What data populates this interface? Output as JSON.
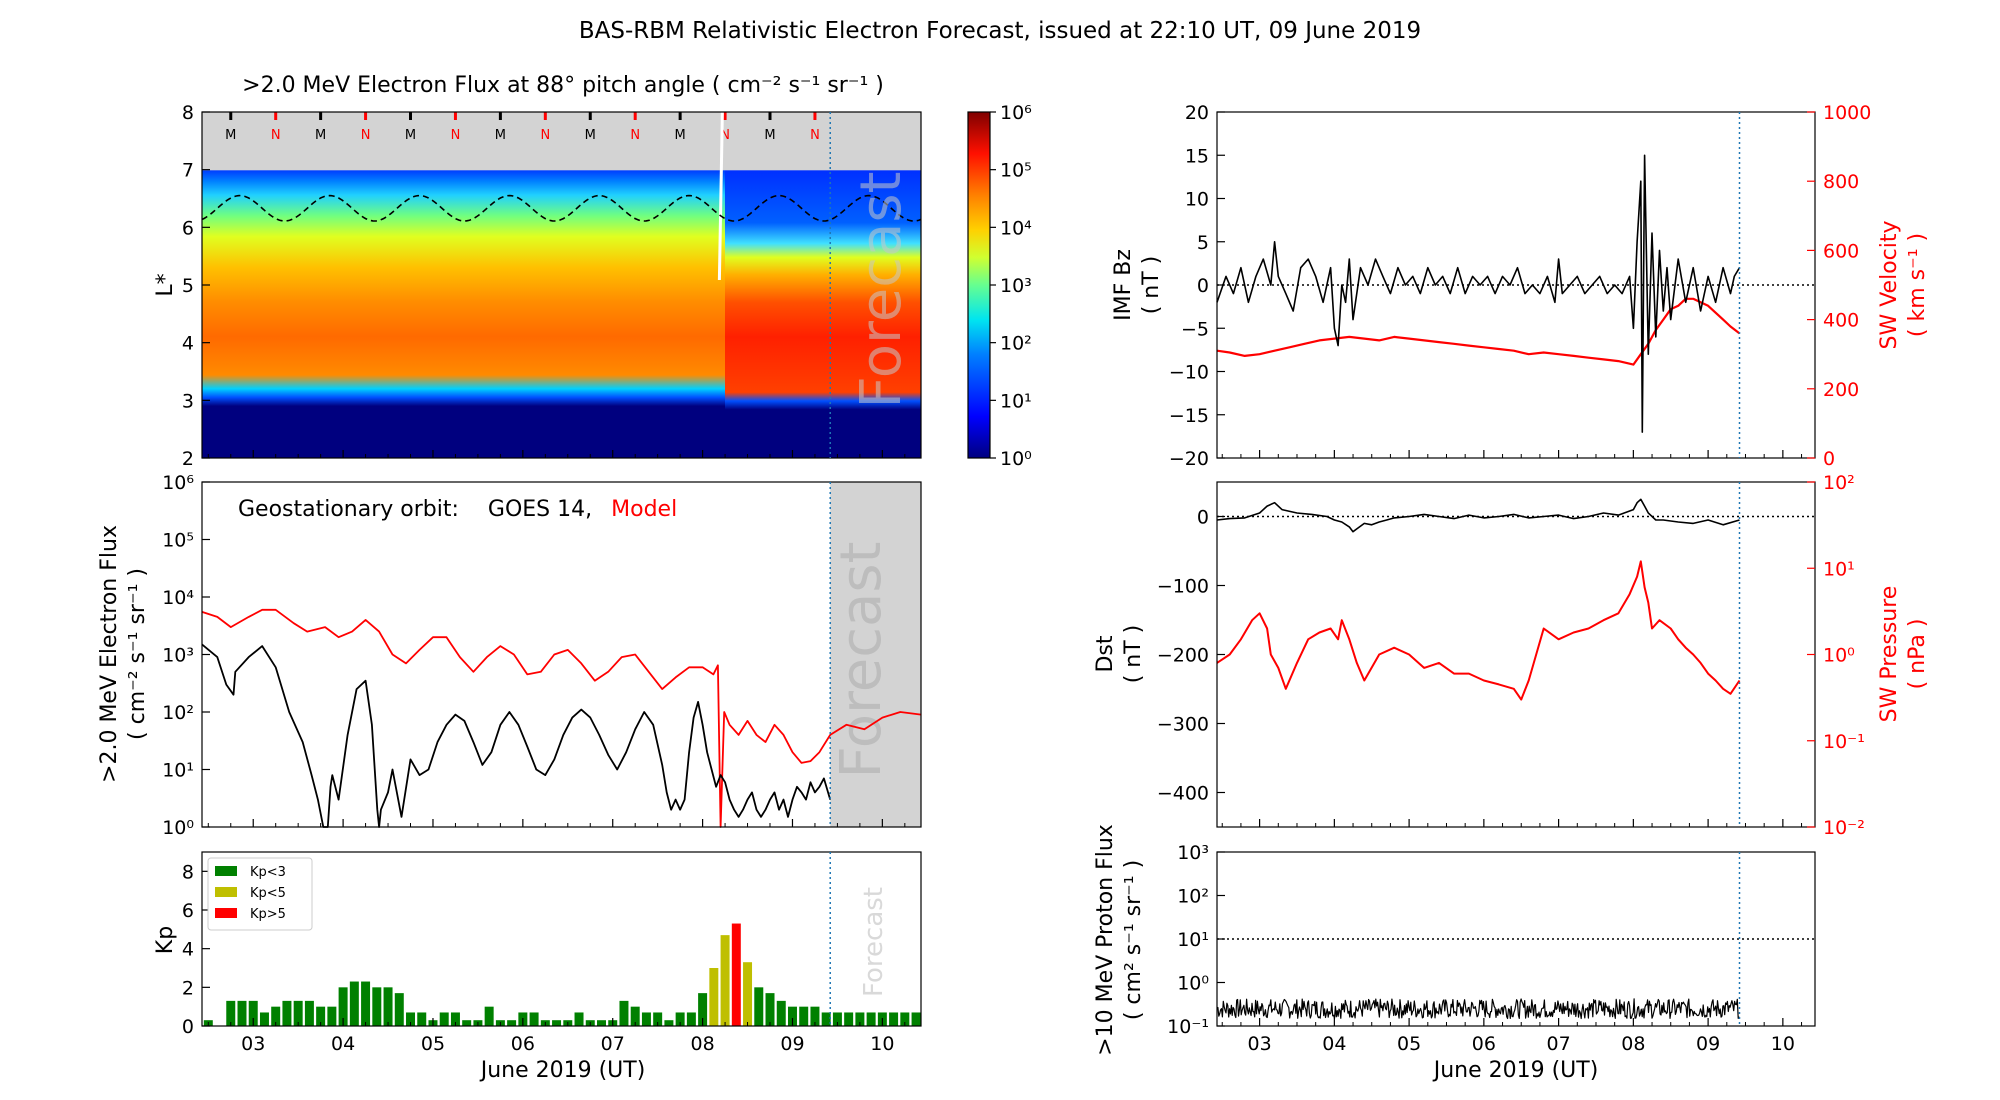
{
  "title": "BAS-RBM Relativistic Electron Forecast, issued at 22:10 UT, 09 June 2019",
  "colors": {
    "model": "#ff0000",
    "observed": "#000000",
    "kp_low": "#008000",
    "kp_mid": "#bfbf00",
    "kp_high": "#ff0000",
    "forecast_shade": "#d3d3d3",
    "vline": "#1f77b4"
  },
  "date_ticks": [
    "03",
    "04",
    "05",
    "06",
    "07",
    "08",
    "09",
    "10"
  ],
  "xlabel": "June 2019 (UT)",
  "chart_data": [
    {
      "id": "flux_map",
      "type": "heatmap",
      "title": ">2.0 MeV Electron Flux at 88° pitch angle ( cm⁻² s⁻¹ sr⁻¹ )",
      "ylabel": "L*",
      "ylim": [
        2,
        8
      ],
      "yticks": [
        "2",
        "3",
        "4",
        "5",
        "6",
        "7",
        "8"
      ],
      "xlim": [
        2.43,
        10.43
      ],
      "colorbar": {
        "scale": "log",
        "range": [
          1,
          1000000
        ],
        "ticks": [
          "10⁰",
          "10¹",
          "10²",
          "10³",
          "10⁴",
          "10⁵",
          "10⁶"
        ]
      },
      "mn_markers": [
        "M",
        "N",
        "M",
        "N",
        "M",
        "N",
        "M",
        "N",
        "M",
        "N",
        "M",
        "N",
        "M",
        "N"
      ],
      "overlay_text": "Forecast",
      "forecast_start": 9.42
    },
    {
      "id": "geo_flux",
      "type": "line",
      "annotation": {
        "prefix": "Geostationary orbit:",
        "observed": "GOES 14,",
        "model": "Model"
      },
      "ylabel": ">2.0 MeV Electron Flux",
      "yunits": "( cm⁻² s⁻¹ sr⁻¹ )",
      "yscale": "log",
      "ylim": [
        1,
        1000000
      ],
      "yticks": [
        "10⁰",
        "10¹",
        "10²",
        "10³",
        "10⁴",
        "10⁵",
        "10⁶"
      ],
      "xlim": [
        2.43,
        10.43
      ],
      "forecast_start": 9.42,
      "overlay_text": "Forecast",
      "series": [
        {
          "name": "GOES 14",
          "x": [
            2.43,
            2.6,
            2.7,
            2.78,
            2.8,
            2.95,
            3.1,
            3.25,
            3.4,
            3.55,
            3.65,
            3.72,
            3.78,
            3.8,
            3.83,
            3.86,
            3.88,
            3.95,
            4.05,
            4.15,
            4.25,
            4.32,
            4.38,
            4.4,
            4.42,
            4.5,
            4.55,
            4.65,
            4.75,
            4.85,
            4.95,
            5.05,
            5.15,
            5.25,
            5.35,
            5.45,
            5.55,
            5.65,
            5.75,
            5.85,
            5.95,
            6.05,
            6.15,
            6.25,
            6.35,
            6.45,
            6.55,
            6.65,
            6.75,
            6.85,
            6.95,
            7.05,
            7.15,
            7.25,
            7.35,
            7.45,
            7.55,
            7.6,
            7.65,
            7.7,
            7.75,
            7.8,
            7.85,
            7.9,
            7.95,
            8.0,
            8.05,
            8.1,
            8.15,
            8.2,
            8.25,
            8.3,
            8.35,
            8.4,
            8.45,
            8.5,
            8.55,
            8.6,
            8.65,
            8.7,
            8.75,
            8.8,
            8.85,
            8.9,
            8.95,
            9.0,
            9.05,
            9.1,
            9.15,
            9.2,
            9.25,
            9.3,
            9.35,
            9.42
          ],
          "y": [
            1500,
            900,
            300,
            200,
            500,
            900,
            1400,
            600,
            100,
            30,
            8,
            3,
            1,
            1,
            1,
            5,
            8,
            3,
            40,
            250,
            350,
            60,
            2,
            1,
            2,
            4,
            10,
            1.5,
            15,
            8,
            10,
            30,
            60,
            90,
            70,
            30,
            12,
            20,
            60,
            100,
            60,
            25,
            10,
            8,
            15,
            40,
            80,
            110,
            80,
            40,
            18,
            10,
            20,
            50,
            100,
            60,
            12,
            4,
            2,
            3,
            2,
            3,
            20,
            80,
            150,
            60,
            20,
            10,
            5,
            8,
            6,
            3,
            2,
            1.5,
            2,
            3,
            4,
            2,
            1.5,
            2,
            3,
            4,
            2,
            3,
            1.5,
            3,
            5,
            4,
            3,
            6,
            4,
            5,
            7,
            3
          ]
        },
        {
          "name": "Model",
          "x": [
            2.43,
            2.6,
            2.75,
            2.95,
            3.1,
            3.25,
            3.45,
            3.6,
            3.8,
            3.95,
            4.1,
            4.25,
            4.4,
            4.55,
            4.7,
            4.85,
            5.0,
            5.15,
            5.3,
            5.45,
            5.6,
            5.75,
            5.9,
            6.05,
            6.2,
            6.35,
            6.5,
            6.65,
            6.8,
            6.95,
            7.1,
            7.25,
            7.4,
            7.55,
            7.7,
            7.85,
            8.0,
            8.12,
            8.17,
            8.2,
            8.24,
            8.3,
            8.4,
            8.5,
            8.6,
            8.7,
            8.8,
            8.9,
            9.0,
            9.1,
            9.2,
            9.3,
            9.42,
            9.6,
            9.8,
            10.0,
            10.2,
            10.43
          ],
          "y": [
            5500,
            4500,
            3000,
            4500,
            6000,
            6000,
            3500,
            2500,
            3000,
            2000,
            2500,
            4000,
            2500,
            1000,
            700,
            1200,
            2000,
            2000,
            900,
            500,
            900,
            1400,
            1000,
            450,
            500,
            1000,
            1200,
            700,
            350,
            500,
            900,
            1000,
            500,
            250,
            400,
            600,
            600,
            450,
            650,
            1,
            100,
            60,
            40,
            70,
            40,
            30,
            60,
            40,
            20,
            13,
            14,
            20,
            40,
            60,
            50,
            80,
            100,
            90
          ]
        }
      ]
    },
    {
      "id": "kp",
      "type": "bar",
      "ylabel": "Kp",
      "ylim": [
        0,
        9
      ],
      "yticks": [
        "0",
        "2",
        "4",
        "6",
        "8"
      ],
      "xlim": [
        2.43,
        10.43
      ],
      "forecast_start": 9.42,
      "overlay_text": "Forecast",
      "legend": [
        "Kp<3",
        "Kp<5",
        "Kp>5"
      ],
      "legend_position": "upper-left",
      "bar_width": 0.1,
      "x": [
        2.5,
        2.625,
        2.75,
        2.875,
        3.0,
        3.125,
        3.25,
        3.375,
        3.5,
        3.625,
        3.75,
        3.875,
        4.0,
        4.125,
        4.25,
        4.375,
        4.5,
        4.625,
        4.75,
        4.875,
        5.0,
        5.125,
        5.25,
        5.375,
        5.5,
        5.625,
        5.75,
        5.875,
        6.0,
        6.125,
        6.25,
        6.375,
        6.5,
        6.625,
        6.75,
        6.875,
        7.0,
        7.125,
        7.25,
        7.375,
        7.5,
        7.625,
        7.75,
        7.875,
        8.0,
        8.125,
        8.25,
        8.375,
        8.5,
        8.625,
        8.75,
        8.875,
        9.0,
        9.125,
        9.25,
        9.375,
        9.5,
        9.625,
        9.75,
        9.875,
        10.0,
        10.125,
        10.25,
        10.375
      ],
      "values": [
        0.3,
        0,
        1.3,
        1.3,
        1.3,
        0.7,
        1,
        1.3,
        1.3,
        1.3,
        1,
        1,
        2,
        2.3,
        2.3,
        2,
        2,
        1.7,
        0.7,
        0.7,
        0.3,
        0.7,
        0.7,
        0.3,
        0.3,
        1,
        0.3,
        0.3,
        0.7,
        0.7,
        0.3,
        0.3,
        0.3,
        0.7,
        0.3,
        0.3,
        0.3,
        1.3,
        1,
        0.7,
        0.7,
        0.3,
        0.7,
        0.7,
        1.7,
        3,
        4.7,
        5.3,
        3.3,
        2,
        1.7,
        1.3,
        1,
        1,
        1,
        0.7,
        0.7,
        0.7,
        0.7,
        0.7,
        0.7,
        0.7,
        0.7,
        0.7
      ]
    },
    {
      "id": "imf",
      "type": "line",
      "ylabel": "IMF Bz",
      "yunits": "( nT )",
      "ylim": [
        -20,
        20
      ],
      "yticks": [
        "−20",
        "−15",
        "−10",
        "−5",
        "0",
        "5",
        "10",
        "15",
        "20"
      ],
      "y2label": "SW Velocity",
      "y2units": "( km s⁻¹ )",
      "y2lim": [
        0,
        1000
      ],
      "y2ticks": [
        "0",
        "200",
        "400",
        "600",
        "800",
        "1000"
      ],
      "xlim": [
        2.43,
        10.43
      ],
      "forecast_start": 9.42,
      "series": [
        {
          "name": "IMF Bz",
          "x": [
            2.43,
            2.55,
            2.65,
            2.75,
            2.85,
            2.95,
            3.05,
            3.15,
            3.2,
            3.25,
            3.35,
            3.45,
            3.55,
            3.65,
            3.75,
            3.85,
            3.95,
            4.0,
            4.05,
            4.1,
            4.15,
            4.2,
            4.25,
            4.35,
            4.45,
            4.55,
            4.65,
            4.75,
            4.85,
            4.95,
            5.05,
            5.15,
            5.25,
            5.35,
            5.45,
            5.55,
            5.65,
            5.75,
            5.85,
            5.95,
            6.05,
            6.15,
            6.25,
            6.35,
            6.45,
            6.55,
            6.65,
            6.75,
            6.85,
            6.95,
            7.0,
            7.05,
            7.15,
            7.25,
            7.35,
            7.45,
            7.55,
            7.65,
            7.75,
            7.85,
            7.95,
            8.0,
            8.05,
            8.1,
            8.12,
            8.15,
            8.2,
            8.25,
            8.3,
            8.35,
            8.4,
            8.45,
            8.5,
            8.6,
            8.7,
            8.8,
            8.9,
            9.0,
            9.1,
            9.2,
            9.3,
            9.35,
            9.42
          ],
          "y": [
            -2,
            1,
            -1,
            2,
            -2,
            1,
            3,
            0,
            5,
            1,
            -1,
            -3,
            2,
            3,
            1,
            -2,
            2,
            -5,
            -7,
            0,
            -2,
            3,
            -4,
            2,
            0,
            3,
            1,
            -1,
            2,
            0,
            1,
            -1,
            2,
            0,
            1,
            -1,
            2,
            -1,
            1,
            0,
            1,
            -1,
            1,
            0,
            2,
            -1,
            0,
            -1,
            1,
            -2,
            3,
            -1,
            0,
            1,
            -1,
            0,
            1,
            -1,
            0,
            -1,
            1,
            -5,
            5,
            12,
            -17,
            15,
            -8,
            6,
            -6,
            4,
            -3,
            2,
            -4,
            3,
            -2,
            2,
            -3,
            1,
            -2,
            2,
            -1,
            1,
            2
          ]
        },
        {
          "name": "SW Velocity",
          "axis": "y2",
          "x": [
            2.43,
            2.6,
            2.8,
            3.0,
            3.2,
            3.4,
            3.6,
            3.8,
            4.0,
            4.2,
            4.4,
            4.6,
            4.8,
            5.0,
            5.2,
            5.4,
            5.6,
            5.8,
            6.0,
            6.2,
            6.4,
            6.6,
            6.8,
            7.0,
            7.2,
            7.4,
            7.6,
            7.8,
            8.0,
            8.1,
            8.2,
            8.3,
            8.4,
            8.5,
            8.6,
            8.7,
            8.8,
            8.9,
            9.0,
            9.1,
            9.2,
            9.3,
            9.42
          ],
          "y": [
            310,
            305,
            295,
            300,
            310,
            320,
            330,
            340,
            345,
            350,
            345,
            340,
            350,
            345,
            340,
            335,
            330,
            325,
            320,
            315,
            310,
            300,
            305,
            300,
            295,
            290,
            285,
            280,
            270,
            300,
            330,
            370,
            400,
            430,
            440,
            460,
            460,
            450,
            440,
            420,
            400,
            380,
            360
          ]
        }
      ]
    },
    {
      "id": "dst",
      "type": "line",
      "ylabel": "Dst",
      "yunits": "( nT )",
      "ylim": [
        -450,
        50
      ],
      "yticks": [
        "−400",
        "−300",
        "−200",
        "−100",
        "0"
      ],
      "y2label": "SW Pressure",
      "y2units": "( nPa )",
      "y2scale": "log",
      "y2lim": [
        0.01,
        100
      ],
      "y2ticks": [
        "10⁻²",
        "10⁻¹",
        "10⁰",
        "10¹",
        "10²"
      ],
      "xlim": [
        2.43,
        10.43
      ],
      "forecast_start": 9.42,
      "series": [
        {
          "name": "Dst",
          "x": [
            2.43,
            2.6,
            2.8,
            3.0,
            3.1,
            3.2,
            3.3,
            3.5,
            3.7,
            3.9,
            4.0,
            4.1,
            4.2,
            4.25,
            4.3,
            4.4,
            4.5,
            4.6,
            4.7,
            4.8,
            5.0,
            5.2,
            5.4,
            5.6,
            5.8,
            6.0,
            6.2,
            6.4,
            6.6,
            6.8,
            7.0,
            7.2,
            7.4,
            7.6,
            7.8,
            8.0,
            8.05,
            8.1,
            8.15,
            8.2,
            8.3,
            8.4,
            8.6,
            8.8,
            9.0,
            9.2,
            9.42
          ],
          "y": [
            -5,
            -3,
            -2,
            5,
            15,
            20,
            10,
            5,
            3,
            0,
            -5,
            -8,
            -15,
            -22,
            -18,
            -10,
            -12,
            -8,
            -5,
            -2,
            0,
            3,
            0,
            -3,
            2,
            -2,
            0,
            3,
            -2,
            0,
            2,
            -3,
            0,
            5,
            2,
            10,
            20,
            25,
            15,
            5,
            -5,
            -5,
            -8,
            -10,
            -5,
            -12,
            -5
          ]
        },
        {
          "name": "SW Pressure",
          "axis": "y2",
          "x": [
            2.43,
            2.6,
            2.75,
            2.9,
            3.0,
            3.1,
            3.15,
            3.25,
            3.35,
            3.5,
            3.65,
            3.8,
            3.95,
            4.05,
            4.1,
            4.2,
            4.3,
            4.4,
            4.6,
            4.8,
            5.0,
            5.2,
            5.4,
            5.6,
            5.8,
            6.0,
            6.2,
            6.4,
            6.5,
            6.6,
            6.7,
            6.8,
            7.0,
            7.2,
            7.4,
            7.6,
            7.8,
            7.95,
            8.05,
            8.1,
            8.15,
            8.2,
            8.25,
            8.35,
            8.5,
            8.6,
            8.7,
            8.8,
            8.9,
            9.0,
            9.1,
            9.2,
            9.3,
            9.42
          ],
          "y": [
            0.8,
            1.0,
            1.5,
            2.5,
            3.0,
            2.0,
            1.0,
            0.7,
            0.4,
            0.8,
            1.5,
            1.8,
            2.0,
            1.5,
            2.5,
            1.5,
            0.8,
            0.5,
            1.0,
            1.2,
            1.0,
            0.7,
            0.8,
            0.6,
            0.6,
            0.5,
            0.45,
            0.4,
            0.3,
            0.5,
            1.0,
            2.0,
            1.5,
            1.8,
            2.0,
            2.5,
            3.0,
            5.0,
            8.0,
            12.0,
            6.0,
            4.0,
            2.0,
            2.5,
            2.0,
            1.5,
            1.2,
            1.0,
            0.8,
            0.6,
            0.5,
            0.4,
            0.35,
            0.5
          ]
        }
      ]
    },
    {
      "id": "proton",
      "type": "line",
      "ylabel": ">10 MeV Proton Flux",
      "yunits": "( cm² s⁻¹ sr⁻¹ )",
      "yscale": "log",
      "ylim": [
        0.1,
        1000
      ],
      "yticks": [
        "10⁻¹",
        "10⁰",
        "10¹",
        "10²",
        "10³"
      ],
      "xlim": [
        2.43,
        10.43
      ],
      "forecast_start": 9.42,
      "threshold": 10,
      "series": [
        {
          "name": "Proton flux",
          "x": [
            2.43,
            9.42
          ],
          "y": [
            0.25,
            0.25
          ]
        }
      ]
    }
  ]
}
